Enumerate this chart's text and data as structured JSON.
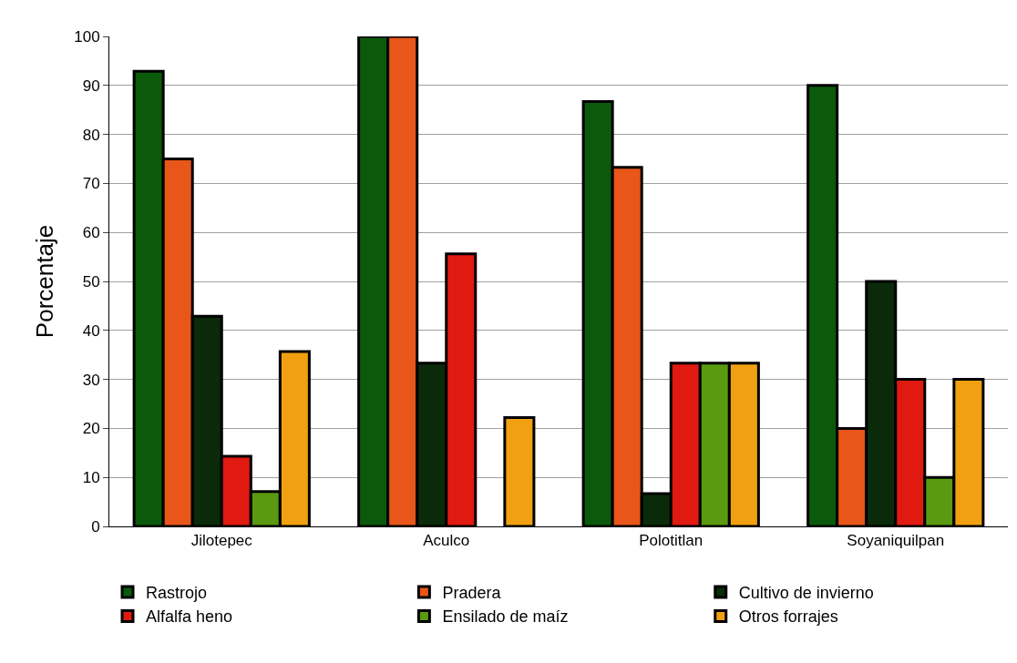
{
  "chart_data": {
    "type": "bar",
    "ylabel": "Porcentaje",
    "categories": [
      "Jilotepec",
      "Aculco",
      "Polotitlan",
      "Soyaniquilpan"
    ],
    "series": [
      {
        "name": "Rastrojo",
        "color": "#0b5a0b",
        "values": [
          92.9,
          100,
          86.7,
          90
        ]
      },
      {
        "name": "Pradera",
        "color": "#e8561a",
        "values": [
          75,
          100,
          73.3,
          20
        ]
      },
      {
        "name": "Cultivo de invierno",
        "color": "#0a2a0a",
        "values": [
          42.9,
          33.3,
          6.7,
          50
        ]
      },
      {
        "name": "Alfalfa heno",
        "color": "#e01a10",
        "values": [
          14.3,
          55.6,
          33.3,
          30
        ]
      },
      {
        "name": "Ensilado de maíz",
        "color": "#5a9a10",
        "values": [
          7.1,
          null,
          33.3,
          10
        ]
      },
      {
        "name": "Otros forrajes",
        "color": "#f0a010",
        "values": [
          35.7,
          22.2,
          33.3,
          30
        ]
      }
    ],
    "ylim": [
      0,
      100
    ],
    "yticks": [
      0,
      10,
      20,
      30,
      40,
      50,
      60,
      70,
      80,
      90,
      100
    ],
    "grid": "y",
    "legend": "bottom"
  }
}
